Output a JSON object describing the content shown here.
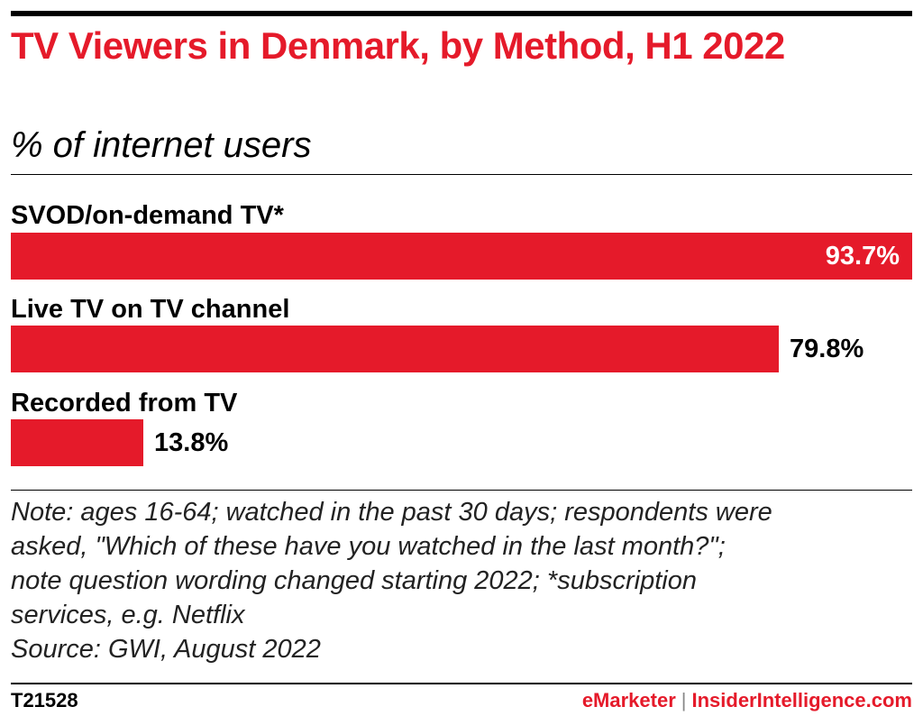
{
  "header": {
    "title": "TV Viewers in Denmark, by Method, H1 2022",
    "subtitle": "% of internet users"
  },
  "chart_data": {
    "type": "bar",
    "orientation": "horizontal",
    "title": "TV Viewers in Denmark, by Method, H1 2022",
    "subtitle": "% of internet users",
    "categories": [
      "SVOD/on-demand TV*",
      "Live TV on TV channel",
      "Recorded from TV"
    ],
    "values": [
      93.7,
      79.8,
      13.8
    ],
    "value_labels": [
      "93.7%",
      "79.8%",
      "13.8%"
    ],
    "xlim": [
      0,
      93.7
    ],
    "grid": false,
    "bar_color": "#e51a2a"
  },
  "notes": {
    "line1": "Note: ages 16-64; watched in the past 30 days; respondents were",
    "line2": "asked, \"Which of these have you watched in the last month?\";",
    "line3": "note question wording changed starting 2022; *subscription",
    "line4": "services, e.g. Netflix",
    "source": "Source: GWI, August 2022"
  },
  "footer": {
    "chart_id": "T21528",
    "brand_a": "eMarketer",
    "separator": "|",
    "brand_b": "InsiderIntelligence.com"
  },
  "colors": {
    "accent": "#e51a2a",
    "text": "#000000"
  }
}
